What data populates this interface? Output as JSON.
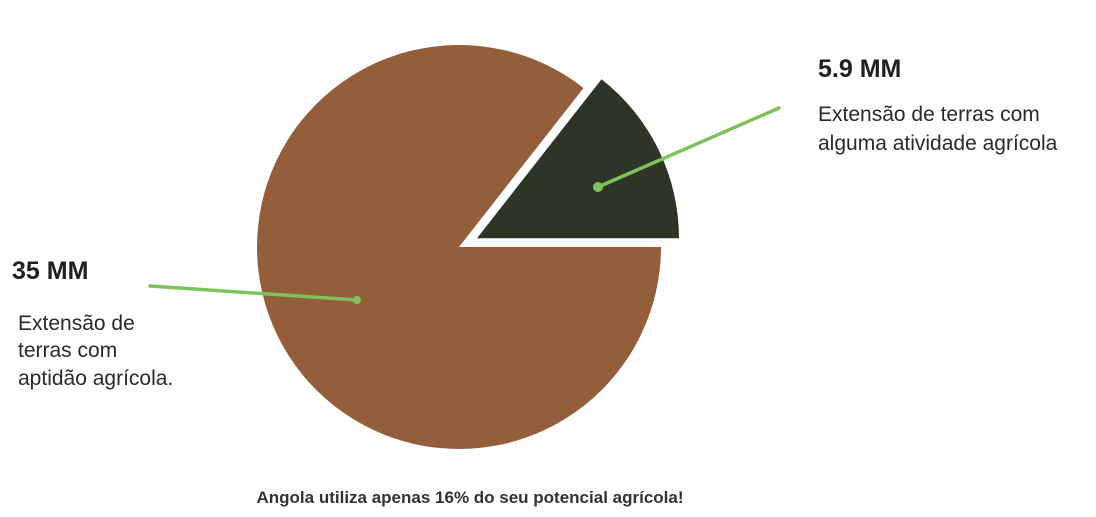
{
  "chart_data": {
    "type": "pie",
    "slices": [
      {
        "value_label": "35 MM",
        "value": 35,
        "description": [
          "Extensão de",
          "terras com",
          "aptidão agrícola."
        ],
        "color": "#955E3A"
      },
      {
        "value_label": "5.9 MM",
        "value": 5.9,
        "description": [
          "Extensão de terras com",
          "alguma atividade agrícola"
        ],
        "color": "#2F3526",
        "exploded": true
      }
    ],
    "leader_line_color": "#7DC35B",
    "caption": "Angola utiliza apenas 16% do seu potencial agrícola!"
  }
}
